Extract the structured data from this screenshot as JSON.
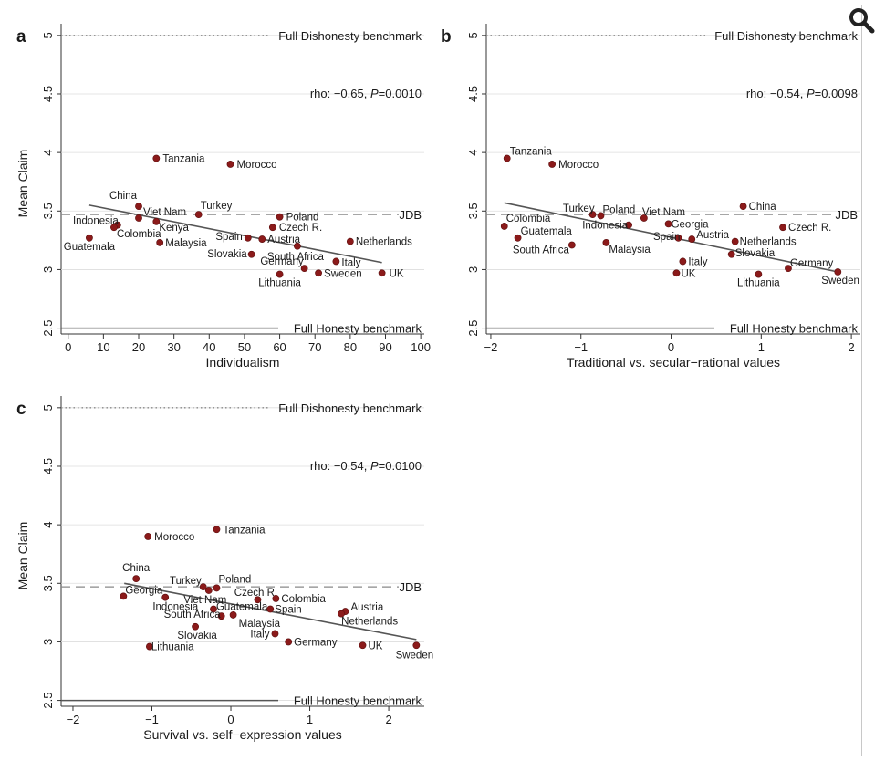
{
  "colors": {
    "point": "#8b1a1a",
    "axis": "#333333",
    "fit": "#555555",
    "benchmark": "#555555",
    "grid": "#dddddd",
    "zoom": "#222222"
  },
  "zoom_icon": "magnifier-icon",
  "benchmarks": {
    "dishonesty": "Full Dishonesty benchmark",
    "honesty": "Full Honesty benchmark",
    "jdb": "JDB",
    "dishonesty_value": 5,
    "honesty_value": 2.5,
    "jdb_value": 3.47
  },
  "chart_data": [
    {
      "type": "scatter",
      "panel": "a",
      "xlabel": "Individualism",
      "ylabel": "Mean Claim",
      "xlim": [
        -2,
        101
      ],
      "ylim": [
        2.45,
        5.1
      ],
      "xticks": [
        "0",
        "10",
        "20",
        "30",
        "40",
        "50",
        "60",
        "70",
        "80",
        "90",
        "100"
      ],
      "xtick_values": [
        0,
        10,
        20,
        30,
        40,
        50,
        60,
        70,
        80,
        90,
        100
      ],
      "yticks": [
        "2.5",
        "3",
        "3.5",
        "4",
        "4.5",
        "5"
      ],
      "ytick_values": [
        2.5,
        3,
        3.5,
        4,
        4.5,
        5
      ],
      "stat_prefix": "rho: −0.65, ",
      "stat_p": "P",
      "stat_suffix": "=0.0010",
      "fit": {
        "x": [
          6,
          89
        ],
        "y": [
          3.55,
          3.06
        ]
      },
      "points": [
        {
          "label": "Tanzania",
          "x": 25,
          "y": 3.95,
          "anchor": "start",
          "dx": 7,
          "dy": 4
        },
        {
          "label": "Morocco",
          "x": 46,
          "y": 3.9,
          "anchor": "start",
          "dx": 7,
          "dy": 4
        },
        {
          "label": "China",
          "x": 20,
          "y": 3.54,
          "anchor": "end",
          "dx": -2,
          "dy": -8
        },
        {
          "label": "Turkey",
          "x": 37,
          "y": 3.47,
          "anchor": "start",
          "dx": 2,
          "dy": -6
        },
        {
          "label": "Viet Nam",
          "x": 20,
          "y": 3.44,
          "anchor": "start",
          "dx": 5,
          "dy": -3
        },
        {
          "label": "Indonesia",
          "x": 14,
          "y": 3.38,
          "anchor": "end",
          "dx": 1,
          "dy": -1
        },
        {
          "label": "Kenya",
          "x": 25,
          "y": 3.41,
          "anchor": "start",
          "dx": 3,
          "dy": 10
        },
        {
          "label": "Colombia",
          "x": 13,
          "y": 3.36,
          "anchor": "start",
          "dx": 3,
          "dy": 11
        },
        {
          "label": "Guatemala",
          "x": 6,
          "y": 3.27,
          "anchor": "middle",
          "dx": 0,
          "dy": 13
        },
        {
          "label": "Malaysia",
          "x": 26,
          "y": 3.23,
          "anchor": "start",
          "dx": 6,
          "dy": 4
        },
        {
          "label": "Poland",
          "x": 60,
          "y": 3.45,
          "anchor": "start",
          "dx": 7,
          "dy": 4
        },
        {
          "label": "Czech R.",
          "x": 58,
          "y": 3.36,
          "anchor": "start",
          "dx": 7,
          "dy": 4
        },
        {
          "label": "Spain",
          "x": 51,
          "y": 3.27,
          "anchor": "end",
          "dx": -6,
          "dy": 2
        },
        {
          "label": "Austria",
          "x": 55,
          "y": 3.26,
          "anchor": "start",
          "dx": 6,
          "dy": 4
        },
        {
          "label": "Netherlands",
          "x": 80,
          "y": 3.24,
          "anchor": "start",
          "dx": 6,
          "dy": 4
        },
        {
          "label": "Slovakia",
          "x": 52,
          "y": 3.13,
          "anchor": "end",
          "dx": -5,
          "dy": 3
        },
        {
          "label": "South Africa",
          "x": 65,
          "y": 3.2,
          "anchor": "middle",
          "dx": -2,
          "dy": 15
        },
        {
          "label": "Italy",
          "x": 76,
          "y": 3.07,
          "anchor": "start",
          "dx": 6,
          "dy": 5
        },
        {
          "label": "Germany",
          "x": 67,
          "y": 3.01,
          "anchor": "end",
          "dx": -1,
          "dy": -4
        },
        {
          "label": "Lithuania",
          "x": 60,
          "y": 2.96,
          "anchor": "middle",
          "dx": 0,
          "dy": 13
        },
        {
          "label": "Sweden",
          "x": 71,
          "y": 2.97,
          "anchor": "start",
          "dx": 6,
          "dy": 4
        },
        {
          "label": "UK",
          "x": 89,
          "y": 2.97,
          "anchor": "start",
          "dx": 8,
          "dy": 4
        }
      ]
    },
    {
      "type": "scatter",
      "panel": "b",
      "xlabel": "Traditional vs. secular−rational values",
      "ylabel": "",
      "xlim": [
        -2.05,
        2.1
      ],
      "ylim": [
        2.45,
        5.1
      ],
      "xticks": [
        "−2",
        "−1",
        "0",
        "1",
        "2"
      ],
      "xtick_values": [
        -2,
        -1,
        0,
        1,
        2
      ],
      "yticks": [
        "2.5",
        "3",
        "3.5",
        "4",
        "4.5",
        "5"
      ],
      "ytick_values": [
        2.5,
        3,
        3.5,
        4,
        4.5,
        5
      ],
      "stat_prefix": "rho: −0.54, ",
      "stat_p": "P",
      "stat_suffix": "=0.0098",
      "fit": {
        "x": [
          -1.85,
          1.85
        ],
        "y": [
          3.57,
          2.98
        ]
      },
      "points": [
        {
          "label": "Tanzania",
          "x": -1.82,
          "y": 3.95,
          "anchor": "start",
          "dx": 3,
          "dy": -4
        },
        {
          "label": "Morocco",
          "x": -1.32,
          "y": 3.9,
          "anchor": "start",
          "dx": 7,
          "dy": 4
        },
        {
          "label": "China",
          "x": 0.8,
          "y": 3.54,
          "anchor": "start",
          "dx": 6,
          "dy": 4
        },
        {
          "label": "Turkey",
          "x": -0.87,
          "y": 3.47,
          "anchor": "end",
          "dx": 2,
          "dy": -3
        },
        {
          "label": "Poland",
          "x": -0.78,
          "y": 3.46,
          "anchor": "start",
          "dx": 2,
          "dy": -3
        },
        {
          "label": "Viet Nam",
          "x": -0.3,
          "y": 3.44,
          "anchor": "start",
          "dx": -2,
          "dy": -3
        },
        {
          "label": "Colombia",
          "x": -1.85,
          "y": 3.37,
          "anchor": "start",
          "dx": 2,
          "dy": -5
        },
        {
          "label": "Indonesia",
          "x": -0.47,
          "y": 3.38,
          "anchor": "end",
          "dx": -1,
          "dy": 4
        },
        {
          "label": "Georgia",
          "x": -0.03,
          "y": 3.39,
          "anchor": "start",
          "dx": 3,
          "dy": 4
        },
        {
          "label": "Czech R.",
          "x": 1.24,
          "y": 3.36,
          "anchor": "start",
          "dx": 6,
          "dy": 4
        },
        {
          "label": "Guatemala",
          "x": -1.7,
          "y": 3.27,
          "anchor": "start",
          "dx": 3,
          "dy": -4
        },
        {
          "label": "Spain",
          "x": 0.08,
          "y": 3.27,
          "anchor": "end",
          "dx": 2,
          "dy": 2
        },
        {
          "label": "Austria",
          "x": 0.23,
          "y": 3.26,
          "anchor": "start",
          "dx": 5,
          "dy": -1
        },
        {
          "label": "Netherlands",
          "x": 0.71,
          "y": 3.24,
          "anchor": "start",
          "dx": 5,
          "dy": 4
        },
        {
          "label": "South Africa",
          "x": -1.1,
          "y": 3.21,
          "anchor": "end",
          "dx": -3,
          "dy": 9
        },
        {
          "label": "Malaysia",
          "x": -0.72,
          "y": 3.23,
          "anchor": "start",
          "dx": 3,
          "dy": 11
        },
        {
          "label": "Slovakia",
          "x": 0.67,
          "y": 3.13,
          "anchor": "start",
          "dx": 4,
          "dy": 2
        },
        {
          "label": "Italy",
          "x": 0.13,
          "y": 3.07,
          "anchor": "start",
          "dx": 6,
          "dy": 4
        },
        {
          "label": "Germany",
          "x": 1.3,
          "y": 3.01,
          "anchor": "start",
          "dx": 2,
          "dy": -2
        },
        {
          "label": "UK",
          "x": 0.06,
          "y": 2.97,
          "anchor": "start",
          "dx": 5,
          "dy": 4
        },
        {
          "label": "Lithuania",
          "x": 0.97,
          "y": 2.96,
          "anchor": "middle",
          "dx": 0,
          "dy": 13
        },
        {
          "label": "Sweden",
          "x": 1.85,
          "y": 2.98,
          "anchor": "start",
          "dx": -18,
          "dy": 13
        }
      ]
    },
    {
      "type": "scatter",
      "panel": "c",
      "xlabel": "Survival vs. self−expression values",
      "ylabel": "Mean Claim",
      "xlim": [
        -2.15,
        2.45
      ],
      "ylim": [
        2.45,
        5.1
      ],
      "xticks": [
        "−2",
        "−1",
        "0",
        "1",
        "2"
      ],
      "xtick_values": [
        -2,
        -1,
        0,
        1,
        2
      ],
      "yticks": [
        "2.5",
        "3",
        "3.5",
        "4",
        "4.5",
        "5"
      ],
      "ytick_values": [
        2.5,
        3,
        3.5,
        4,
        4.5,
        5
      ],
      "stat_prefix": "rho: −0.54, ",
      "stat_p": "P",
      "stat_suffix": "=0.0100",
      "fit": {
        "x": [
          -1.35,
          2.35
        ],
        "y": [
          3.5,
          3.02
        ]
      },
      "points": [
        {
          "label": "Morocco",
          "x": -1.05,
          "y": 3.9,
          "anchor": "start",
          "dx": 7,
          "dy": 4
        },
        {
          "label": "Tanzania",
          "x": -0.18,
          "y": 3.96,
          "anchor": "start",
          "dx": 7,
          "dy": 4
        },
        {
          "label": "China",
          "x": -1.2,
          "y": 3.54,
          "anchor": "middle",
          "dx": 0,
          "dy": -8
        },
        {
          "label": "Turkey",
          "x": -0.35,
          "y": 3.47,
          "anchor": "end",
          "dx": -2,
          "dy": -3
        },
        {
          "label": "Poland",
          "x": -0.18,
          "y": 3.46,
          "anchor": "start",
          "dx": 2,
          "dy": -6
        },
        {
          "label": "Georgia",
          "x": -1.36,
          "y": 3.39,
          "anchor": "start",
          "dx": 2,
          "dy": -3
        },
        {
          "label": "Viet Nam",
          "x": -0.28,
          "y": 3.44,
          "anchor": "middle",
          "dx": -4,
          "dy": 14
        },
        {
          "label": "Czech R.",
          "x": 0.34,
          "y": 3.36,
          "anchor": "middle",
          "dx": -2,
          "dy": -4
        },
        {
          "label": "Indonesia",
          "x": -0.83,
          "y": 3.38,
          "anchor": "end",
          "dx": 36,
          "dy": 14
        },
        {
          "label": "Colombia",
          "x": 0.57,
          "y": 3.37,
          "anchor": "start",
          "dx": 6,
          "dy": 4
        },
        {
          "label": "Guatemala",
          "x": -0.22,
          "y": 3.28,
          "anchor": "start",
          "dx": 3,
          "dy": 1
        },
        {
          "label": "Spain",
          "x": 0.5,
          "y": 3.28,
          "anchor": "start",
          "dx": 5,
          "dy": 4
        },
        {
          "label": "South Africa",
          "x": -0.12,
          "y": 3.22,
          "anchor": "end",
          "dx": -1,
          "dy": 2
        },
        {
          "label": "Malaysia",
          "x": 0.03,
          "y": 3.23,
          "anchor": "start",
          "dx": 6,
          "dy": 13
        },
        {
          "label": "Austria",
          "x": 1.45,
          "y": 3.26,
          "anchor": "start",
          "dx": 6,
          "dy": -1
        },
        {
          "label": "Netherlands",
          "x": 1.4,
          "y": 3.24,
          "anchor": "start",
          "dx": 0,
          "dy": 12
        },
        {
          "label": "Slovakia",
          "x": -0.45,
          "y": 3.13,
          "anchor": "middle",
          "dx": 2,
          "dy": 13
        },
        {
          "label": "Italy",
          "x": 0.56,
          "y": 3.07,
          "anchor": "end",
          "dx": -6,
          "dy": 4
        },
        {
          "label": "Germany",
          "x": 0.73,
          "y": 3.0,
          "anchor": "start",
          "dx": 6,
          "dy": 4
        },
        {
          "label": "UK",
          "x": 1.67,
          "y": 2.97,
          "anchor": "start",
          "dx": 6,
          "dy": 4
        },
        {
          "label": "Lithuania",
          "x": -1.03,
          "y": 2.96,
          "anchor": "start",
          "dx": 2,
          "dy": 4
        },
        {
          "label": "Sweden",
          "x": 2.35,
          "y": 2.97,
          "anchor": "middle",
          "dx": -2,
          "dy": 14
        }
      ]
    }
  ]
}
